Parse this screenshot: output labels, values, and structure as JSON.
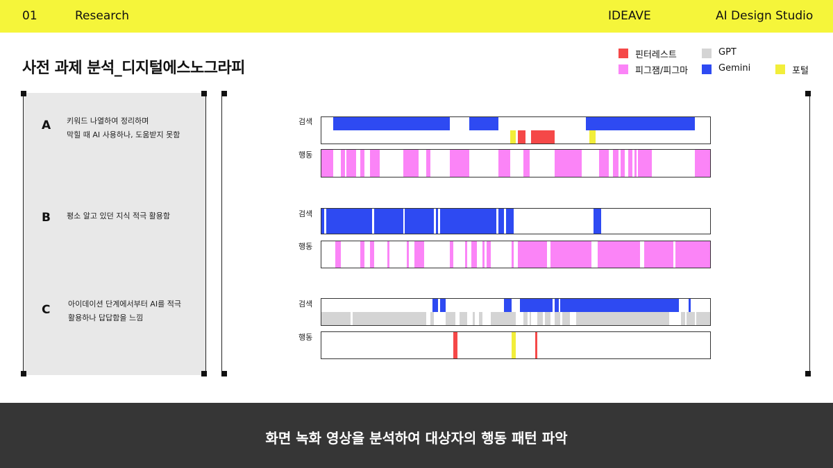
{
  "header": {
    "page_number": "01",
    "section": "Research",
    "brand": "IDEAVE",
    "studio": "AI Design Studio"
  },
  "title": "사전 과제 분석_디지털에스노그라피",
  "legend": [
    {
      "label": "핀터레스트",
      "color": "#f54848"
    },
    {
      "label": "GPT",
      "color": "#d4d4d4"
    },
    {
      "label": "피그잼/피그마",
      "color": "#fb84f7"
    },
    {
      "label": "Gemini",
      "color": "#2e4af2"
    },
    {
      "label": "포털",
      "color": "#f2ee3a"
    }
  ],
  "categories": [
    {
      "letter": "A",
      "text": "키워드 나열하여 정리하며\n막힐 때 AI 사용하나, 도움받지 못함"
    },
    {
      "letter": "B",
      "text": "평소 알고 있던 지식 적극 활용함"
    },
    {
      "letter": "C",
      "text": "아이데이션 단계에서부터 AI를 적극\n활용하나 답답함을 느낌"
    }
  ],
  "row_labels": {
    "search": "검색",
    "action": "행동"
  },
  "timelines": [
    {
      "search": [
        {
          "tool": "Gemini",
          "lane": 0,
          "start": 0.03,
          "end": 0.2
        },
        {
          "tool": "Gemini",
          "lane": 0,
          "start": 0.2,
          "end": 0.33
        },
        {
          "tool": "Gemini",
          "lane": 0,
          "start": 0.38,
          "end": 0.4
        },
        {
          "tool": "Gemini",
          "lane": 0,
          "start": 0.4,
          "end": 0.455
        },
        {
          "tool": "Gemini",
          "lane": 0,
          "start": 0.68,
          "end": 0.96
        },
        {
          "tool": "포털",
          "lane": 1,
          "start": 0.485,
          "end": 0.5
        },
        {
          "tool": "핀터레스트",
          "lane": 1,
          "start": 0.505,
          "end": 0.525
        },
        {
          "tool": "핀터레스트",
          "lane": 1,
          "start": 0.54,
          "end": 0.6
        },
        {
          "tool": "포털",
          "lane": 1,
          "start": 0.69,
          "end": 0.705
        }
      ],
      "action": [
        {
          "tool": "피그잼/피그마",
          "start": 0.0,
          "end": 0.03
        },
        {
          "tool": "피그잼/피그마",
          "start": 0.05,
          "end": 0.06
        },
        {
          "tool": "피그잼/피그마",
          "start": 0.065,
          "end": 0.09
        },
        {
          "tool": "피그잼/피그마",
          "start": 0.1,
          "end": 0.11
        },
        {
          "tool": "피그잼/피그마",
          "start": 0.125,
          "end": 0.15
        },
        {
          "tool": "피그잼/피그마",
          "start": 0.21,
          "end": 0.25
        },
        {
          "tool": "피그잼/피그마",
          "start": 0.27,
          "end": 0.28
        },
        {
          "tool": "피그잼/피그마",
          "start": 0.33,
          "end": 0.38
        },
        {
          "tool": "피그잼/피그마",
          "start": 0.455,
          "end": 0.485
        },
        {
          "tool": "피그잼/피그마",
          "start": 0.52,
          "end": 0.535
        },
        {
          "tool": "피그잼/피그마",
          "start": 0.6,
          "end": 0.67
        },
        {
          "tool": "피그잼/피그마",
          "start": 0.715,
          "end": 0.74
        },
        {
          "tool": "피그잼/피그마",
          "start": 0.75,
          "end": 0.765
        },
        {
          "tool": "피그잼/피그마",
          "start": 0.77,
          "end": 0.78
        },
        {
          "tool": "피그잼/피그마",
          "start": 0.79,
          "end": 0.8
        },
        {
          "tool": "피그잼/피그마",
          "start": 0.805,
          "end": 0.81
        },
        {
          "tool": "피그잼/피그마",
          "start": 0.815,
          "end": 0.85
        },
        {
          "tool": "피그잼/피그마",
          "start": 0.96,
          "end": 1.0
        }
      ]
    },
    {
      "search": [
        {
          "tool": "Gemini",
          "lane": 0,
          "start": 0.0,
          "end": 0.008
        },
        {
          "tool": "Gemini",
          "lane": 0,
          "start": 0.012,
          "end": 0.13
        },
        {
          "tool": "Gemini",
          "lane": 0,
          "start": 0.135,
          "end": 0.21
        },
        {
          "tool": "Gemini",
          "lane": 0,
          "start": 0.215,
          "end": 0.29
        },
        {
          "tool": "Gemini",
          "lane": 0,
          "start": 0.295,
          "end": 0.3
        },
        {
          "tool": "Gemini",
          "lane": 0,
          "start": 0.305,
          "end": 0.45
        },
        {
          "tool": "Gemini",
          "lane": 0,
          "start": 0.455,
          "end": 0.47
        },
        {
          "tool": "Gemini",
          "lane": 0,
          "start": 0.475,
          "end": 0.495
        },
        {
          "tool": "Gemini",
          "lane": 0,
          "start": 0.7,
          "end": 0.72
        }
      ],
      "action": [
        {
          "tool": "피그잼/피그마",
          "start": 0.035,
          "end": 0.05
        },
        {
          "tool": "피그잼/피그마",
          "start": 0.1,
          "end": 0.11
        },
        {
          "tool": "피그잼/피그마",
          "start": 0.125,
          "end": 0.135
        },
        {
          "tool": "피그잼/피그마",
          "start": 0.17,
          "end": 0.175
        },
        {
          "tool": "피그잼/피그마",
          "start": 0.22,
          "end": 0.225
        },
        {
          "tool": "피그잼/피그마",
          "start": 0.24,
          "end": 0.265
        },
        {
          "tool": "피그잼/피그마",
          "start": 0.33,
          "end": 0.34
        },
        {
          "tool": "피그잼/피그마",
          "start": 0.37,
          "end": 0.375
        },
        {
          "tool": "피그잼/피그마",
          "start": 0.385,
          "end": 0.4
        },
        {
          "tool": "피그잼/피그마",
          "start": 0.415,
          "end": 0.42
        },
        {
          "tool": "피그잼/피그마",
          "start": 0.425,
          "end": 0.435
        },
        {
          "tool": "피그잼/피그마",
          "start": 0.49,
          "end": 0.495
        },
        {
          "tool": "피그잼/피그마",
          "start": 0.505,
          "end": 0.58
        },
        {
          "tool": "피그잼/피그마",
          "start": 0.59,
          "end": 0.695
        },
        {
          "tool": "피그잼/피그마",
          "start": 0.71,
          "end": 0.82
        },
        {
          "tool": "피그잼/피그마",
          "start": 0.83,
          "end": 0.905
        },
        {
          "tool": "피그잼/피그마",
          "start": 0.91,
          "end": 0.96
        },
        {
          "tool": "피그잼/피그마",
          "start": 0.96,
          "end": 1.0
        }
      ]
    },
    {
      "search": [
        {
          "tool": "Gemini",
          "lane": 0,
          "start": 0.285,
          "end": 0.3
        },
        {
          "tool": "Gemini",
          "lane": 0,
          "start": 0.305,
          "end": 0.32
        },
        {
          "tool": "Gemini",
          "lane": 0,
          "start": 0.47,
          "end": 0.49
        },
        {
          "tool": "Gemini",
          "lane": 0,
          "start": 0.51,
          "end": 0.595
        },
        {
          "tool": "Gemini",
          "lane": 0,
          "start": 0.6,
          "end": 0.61
        },
        {
          "tool": "Gemini",
          "lane": 0,
          "start": 0.615,
          "end": 0.92
        },
        {
          "tool": "Gemini",
          "lane": 0,
          "start": 0.945,
          "end": 0.95
        },
        {
          "tool": "GPT",
          "lane": 1,
          "start": 0.0,
          "end": 0.075
        },
        {
          "tool": "GPT",
          "lane": 1,
          "start": 0.08,
          "end": 0.27
        },
        {
          "tool": "GPT",
          "lane": 1,
          "start": 0.28,
          "end": 0.29
        },
        {
          "tool": "GPT",
          "lane": 1,
          "start": 0.32,
          "end": 0.345
        },
        {
          "tool": "GPT",
          "lane": 1,
          "start": 0.355,
          "end": 0.375
        },
        {
          "tool": "GPT",
          "lane": 1,
          "start": 0.39,
          "end": 0.395
        },
        {
          "tool": "GPT",
          "lane": 1,
          "start": 0.405,
          "end": 0.415
        },
        {
          "tool": "GPT",
          "lane": 1,
          "start": 0.435,
          "end": 0.5
        },
        {
          "tool": "GPT",
          "lane": 1,
          "start": 0.52,
          "end": 0.53
        },
        {
          "tool": "GPT",
          "lane": 1,
          "start": 0.535,
          "end": 0.54
        },
        {
          "tool": "GPT",
          "lane": 1,
          "start": 0.555,
          "end": 0.57
        },
        {
          "tool": "GPT",
          "lane": 1,
          "start": 0.575,
          "end": 0.59
        },
        {
          "tool": "GPT",
          "lane": 1,
          "start": 0.6,
          "end": 0.615
        },
        {
          "tool": "GPT",
          "lane": 1,
          "start": 0.62,
          "end": 0.64
        },
        {
          "tool": "GPT",
          "lane": 1,
          "start": 0.655,
          "end": 0.895
        },
        {
          "tool": "GPT",
          "lane": 1,
          "start": 0.925,
          "end": 0.935
        },
        {
          "tool": "GPT",
          "lane": 1,
          "start": 0.94,
          "end": 0.96
        },
        {
          "tool": "GPT",
          "lane": 1,
          "start": 0.965,
          "end": 1.0
        }
      ],
      "action": [
        {
          "tool": "핀터레스트",
          "start": 0.34,
          "end": 0.35
        },
        {
          "tool": "포털",
          "start": 0.49,
          "end": 0.5
        },
        {
          "tool": "핀터레스트",
          "start": 0.55,
          "end": 0.555
        }
      ]
    }
  ],
  "footer": {
    "caption": "화면 녹화 영상을 분석하여 대상자의 행동 패턴 파악"
  }
}
